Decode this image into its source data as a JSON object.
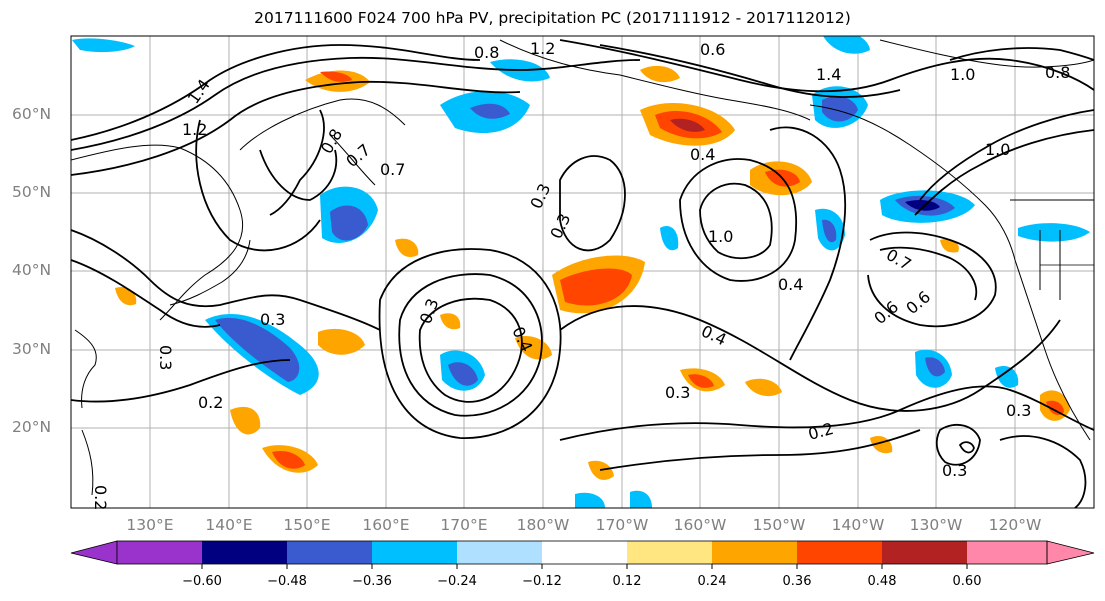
{
  "title": "2017111600 F024 700 hPa PV, precipitation PC (2017111912 - 2017112012)",
  "map": {
    "latitude_labels": [
      "60°N",
      "50°N",
      "40°N",
      "30°N",
      "20°N"
    ],
    "longitude_labels": [
      "130°E",
      "140°E",
      "150°E",
      "160°E",
      "170°E",
      "180°W",
      "170°W",
      "160°W",
      "150°W",
      "140°W",
      "130°W",
      "120°W"
    ],
    "contour_labels": [
      "1.2",
      "1.4",
      "0.8",
      "1.2",
      "0.6",
      "0.7",
      "1.4",
      "1.0",
      "0.8",
      "1.0",
      "0.8",
      "0.7",
      "0.3",
      "0.3",
      "0.4",
      "1.0",
      "0.4",
      "0.4",
      "0.3",
      "0.2",
      "0.3",
      "0.4",
      "0.3",
      "0.6",
      "0.6",
      "0.7",
      "0.2",
      "0.3",
      "0.3",
      "0.3",
      "0.2"
    ],
    "colors": {
      "land_outline": "#000000",
      "contour": "#000000",
      "grid": "#b0b0b0"
    }
  },
  "colorbar": {
    "tick_labels": [
      "−0.60",
      "−0.48",
      "−0.36",
      "−0.24",
      "−0.12",
      "0.12",
      "0.24",
      "0.36",
      "0.48",
      "0.60"
    ],
    "colors": [
      "#9933cc",
      "#000080",
      "#3a5bd0",
      "#00bfff",
      "#b0e0ff",
      "#ffffff",
      "#ffe680",
      "#ffa500",
      "#ff4500",
      "#b22222",
      "#ff88aa"
    ]
  }
}
